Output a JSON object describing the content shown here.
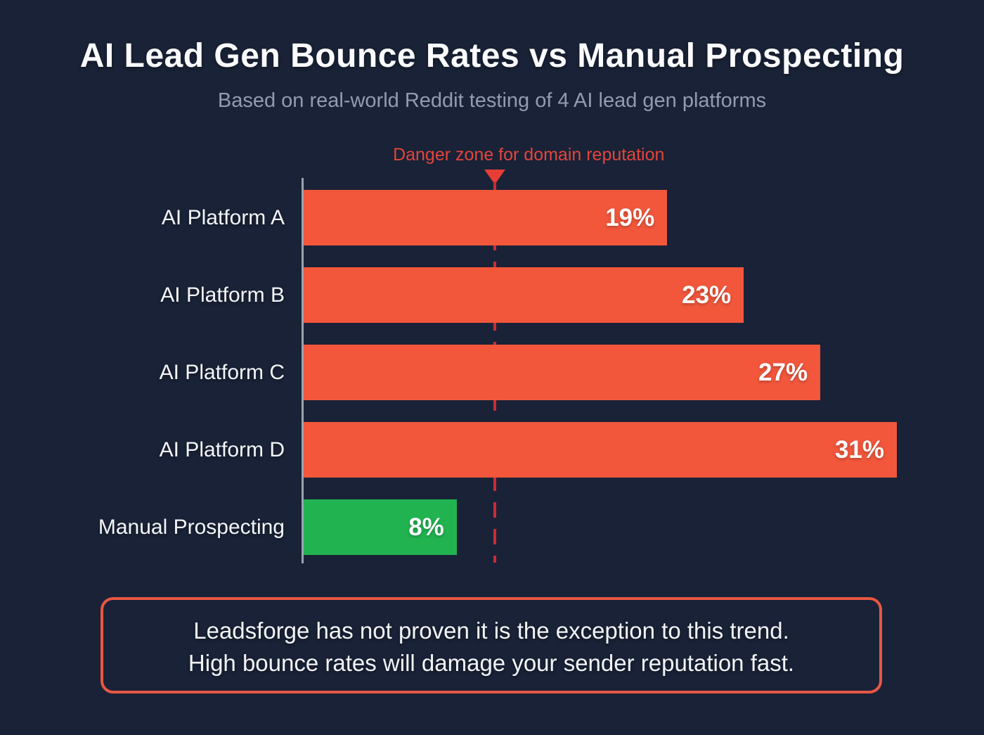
{
  "page": {
    "title": "AI Lead Gen Bounce Rates vs Manual Prospecting",
    "subtitle": "Based on real-world Reddit testing of 4 AI lead gen platforms"
  },
  "danger": {
    "label": "Danger zone for domain reputation"
  },
  "chart_data": {
    "type": "bar",
    "orientation": "horizontal",
    "title": "AI Lead Gen Bounce Rates vs Manual Prospecting",
    "categories": [
      "AI Platform A",
      "AI Platform B",
      "AI Platform C",
      "AI Platform D",
      "Manual Prospecting"
    ],
    "values": [
      19,
      23,
      27,
      31,
      8
    ],
    "value_labels": [
      "19%",
      "23%",
      "27%",
      "31%",
      "8%"
    ],
    "bar_colors": [
      "#f2573c",
      "#f2573c",
      "#f2573c",
      "#f2573c",
      "#22b351"
    ],
    "unit": "%",
    "xlim": [
      0,
      31
    ],
    "axis_max": 31,
    "danger_threshold": 10,
    "grid": false,
    "legend": false,
    "annotation": "Danger zone for domain reputation"
  },
  "callout": {
    "line1": "Leadsforge has not proven it is the exception to this trend.",
    "line2": "High bounce rates will damage your sender reputation fast."
  },
  "colors": {
    "background": "#192236",
    "bar_red": "#f2573c",
    "bar_green": "#22b351",
    "danger_text_red": "#e4453c",
    "danger_dash_red": "#ce2b33",
    "axis_gray": "#99a3af",
    "callout_border": "#e85744"
  }
}
